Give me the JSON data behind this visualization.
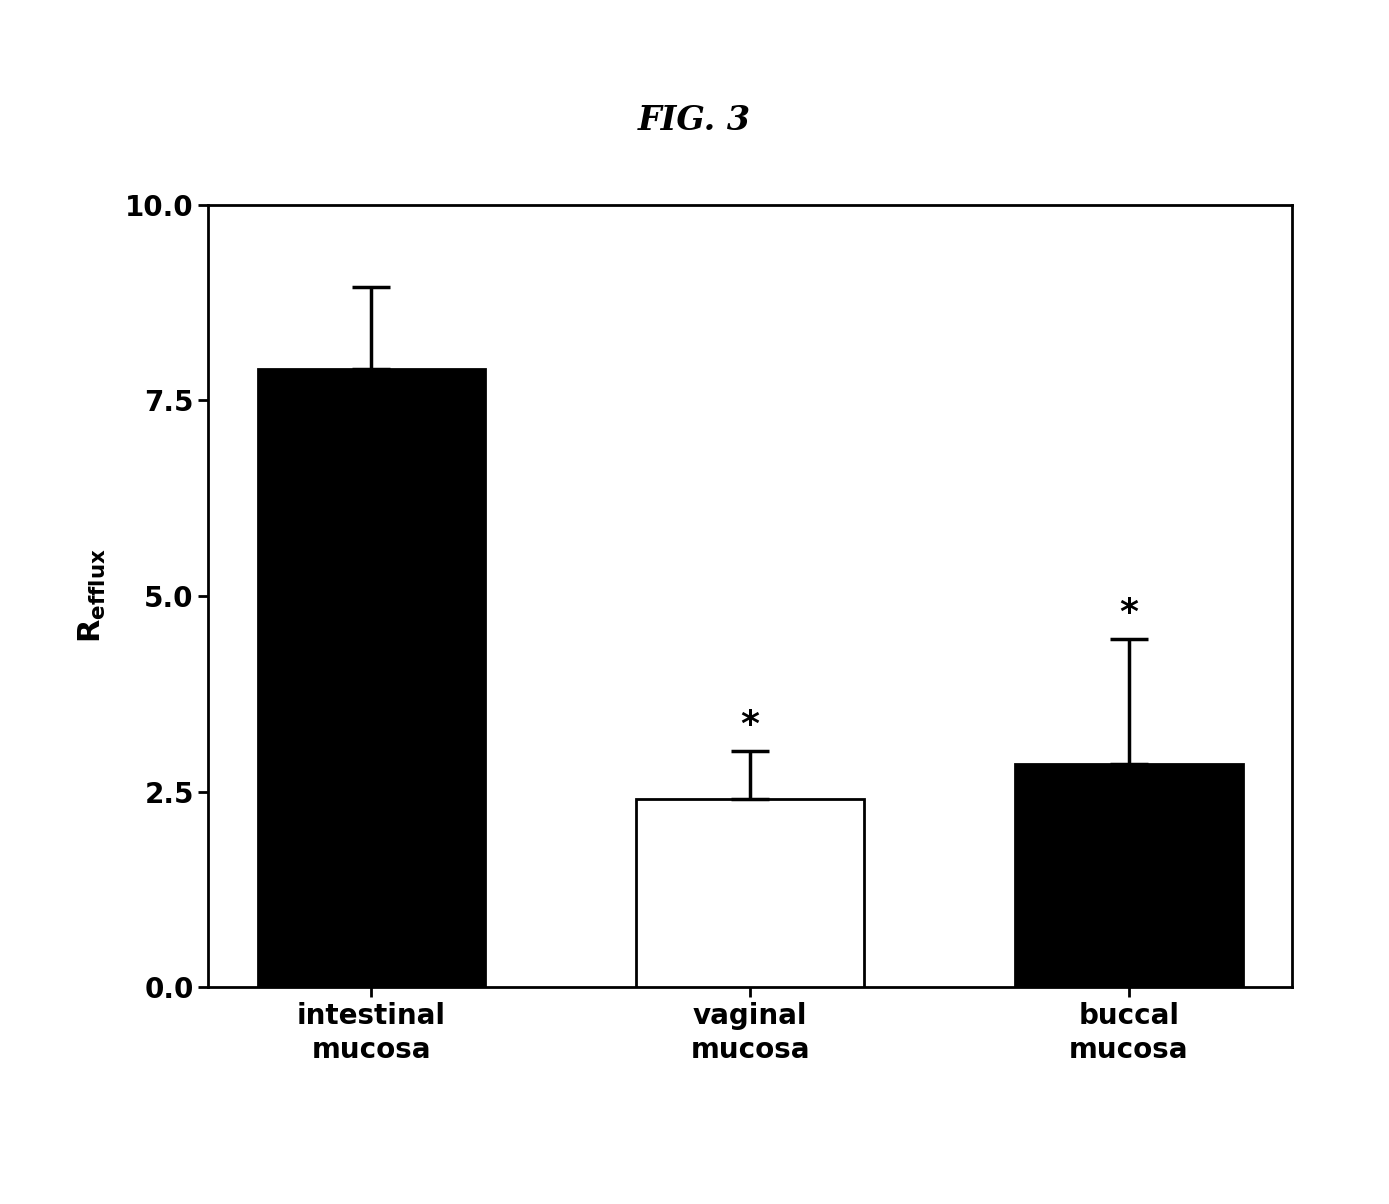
{
  "title": "FIG. 3",
  "categories": [
    "intestinal\nmucosa",
    "vaginal\nmucosa",
    "buccal\nmucosa"
  ],
  "values": [
    7.9,
    2.4,
    2.85
  ],
  "error_upper": [
    1.05,
    0.62,
    1.6
  ],
  "bar_colors": [
    "#000000",
    "#ffffff",
    "#000000"
  ],
  "bar_edgecolors": [
    "#000000",
    "#000000",
    "#000000"
  ],
  "bar_hatches": [
    null,
    null,
    "|||"
  ],
  "significance": [
    false,
    true,
    true
  ],
  "ylim": [
    0.0,
    10.0
  ],
  "yticks": [
    0.0,
    2.5,
    5.0,
    7.5,
    10.0
  ],
  "background_color": "#ffffff",
  "title_fontsize": 24,
  "ylabel_fontsize": 22,
  "tick_fontsize": 20,
  "category_fontsize": 20,
  "star_fontsize": 26,
  "bar_width": 0.6
}
